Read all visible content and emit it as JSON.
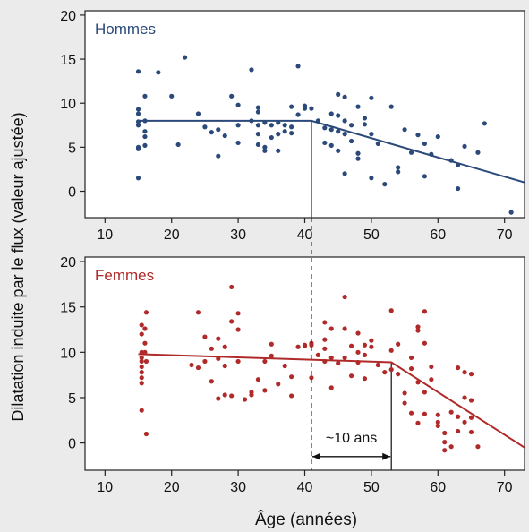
{
  "figure": {
    "ylabel": "Dilatation induite par le flux (valeur ajustée)",
    "xlabel": "Âge (années)",
    "annotation": "~10 ans"
  },
  "colors": {
    "men": "#2b4a7a",
    "women": "#b02a2a",
    "background": "#ebebeb",
    "panel": "#ffffff"
  },
  "chart_data": [
    {
      "type": "scatter",
      "title": "Hommes",
      "xlim": [
        7,
        73
      ],
      "ylim": [
        -3,
        20.5
      ],
      "xticks": [
        10,
        20,
        30,
        40,
        50,
        60,
        70
      ],
      "yticks": [
        0,
        5,
        10,
        15,
        20
      ],
      "breakpoint": 41,
      "fit": [
        [
          15,
          8.0
        ],
        [
          41,
          8.0
        ],
        [
          73,
          1.0
        ]
      ],
      "points": [
        [
          15,
          13.6
        ],
        [
          15,
          9.3
        ],
        [
          15,
          8.8
        ],
        [
          15,
          7.9
        ],
        [
          15,
          7.5
        ],
        [
          15,
          5.0
        ],
        [
          15,
          4.8
        ],
        [
          15,
          1.5
        ],
        [
          16,
          10.8
        ],
        [
          16,
          8.0
        ],
        [
          16,
          6.8
        ],
        [
          16,
          6.2
        ],
        [
          16,
          5.2
        ],
        [
          18,
          13.5
        ],
        [
          20,
          10.8
        ],
        [
          21,
          5.3
        ],
        [
          22,
          15.2
        ],
        [
          24,
          8.8
        ],
        [
          25,
          7.3
        ],
        [
          26,
          6.7
        ],
        [
          27,
          4.0
        ],
        [
          27,
          7.0
        ],
        [
          28,
          6.3
        ],
        [
          29,
          10.8
        ],
        [
          30,
          9.8
        ],
        [
          30,
          7.5
        ],
        [
          30,
          5.5
        ],
        [
          32,
          13.8
        ],
        [
          32,
          8.0
        ],
        [
          33,
          9.5
        ],
        [
          33,
          9.0
        ],
        [
          33,
          7.5
        ],
        [
          33,
          6.5
        ],
        [
          33,
          5.3
        ],
        [
          34,
          7.8
        ],
        [
          34,
          5.0
        ],
        [
          34,
          4.6
        ],
        [
          35,
          7.5
        ],
        [
          35,
          6.1
        ],
        [
          36,
          7.8
        ],
        [
          36,
          6.5
        ],
        [
          36,
          4.6
        ],
        [
          37,
          7.5
        ],
        [
          37,
          6.8
        ],
        [
          38,
          9.6
        ],
        [
          38,
          7.3
        ],
        [
          38,
          6.6
        ],
        [
          39,
          14.2
        ],
        [
          39,
          8.7
        ],
        [
          40,
          9.7
        ],
        [
          40,
          9.4
        ],
        [
          41,
          9.4
        ],
        [
          42,
          8.0
        ],
        [
          43,
          7.2
        ],
        [
          43,
          5.5
        ],
        [
          44,
          8.8
        ],
        [
          44,
          7.0
        ],
        [
          44,
          5.2
        ],
        [
          45,
          11.0
        ],
        [
          45,
          8.6
        ],
        [
          45,
          6.8
        ],
        [
          45,
          4.6
        ],
        [
          46,
          10.7
        ],
        [
          46,
          8.0
        ],
        [
          46,
          6.5
        ],
        [
          46,
          2.0
        ],
        [
          47,
          7.5
        ],
        [
          47,
          5.7
        ],
        [
          48,
          9.6
        ],
        [
          48,
          4.3
        ],
        [
          48,
          3.7
        ],
        [
          49,
          8.3
        ],
        [
          49,
          7.6
        ],
        [
          50,
          10.6
        ],
        [
          50,
          6.5
        ],
        [
          50,
          1.5
        ],
        [
          51,
          5.4
        ],
        [
          52,
          0.8
        ],
        [
          53,
          9.6
        ],
        [
          54,
          2.2
        ],
        [
          54,
          2.7
        ],
        [
          55,
          7.0
        ],
        [
          56,
          4.4
        ],
        [
          57,
          6.4
        ],
        [
          58,
          5.4
        ],
        [
          58,
          1.7
        ],
        [
          59,
          4.2
        ],
        [
          60,
          6.2
        ],
        [
          62,
          3.5
        ],
        [
          63,
          3.0
        ],
        [
          63,
          0.3
        ],
        [
          64,
          5.1
        ],
        [
          66,
          4.4
        ],
        [
          67,
          7.7
        ],
        [
          71,
          -2.4
        ]
      ]
    },
    {
      "type": "scatter",
      "title": "Femmes",
      "xlim": [
        7,
        73
      ],
      "ylim": [
        -3,
        20.5
      ],
      "xticks": [
        10,
        20,
        30,
        40,
        50,
        60,
        70
      ],
      "yticks": [
        0,
        5,
        10,
        15,
        20
      ],
      "breakpoint": 53,
      "fit": [
        [
          15,
          9.8
        ],
        [
          53,
          8.9
        ],
        [
          73,
          -0.5
        ]
      ],
      "points": [
        [
          15.5,
          13.0
        ],
        [
          15.5,
          12.0
        ],
        [
          15.5,
          10.0
        ],
        [
          15.5,
          9.4
        ],
        [
          15.5,
          9.0
        ],
        [
          15.5,
          8.4
        ],
        [
          15.5,
          7.8
        ],
        [
          15.5,
          7.2
        ],
        [
          15.5,
          6.6
        ],
        [
          15.5,
          3.6
        ],
        [
          16,
          12.6
        ],
        [
          16,
          11.0
        ],
        [
          16,
          10.0
        ],
        [
          16.2,
          14.4
        ],
        [
          16.2,
          9.0
        ],
        [
          16.2,
          1.0
        ],
        [
          23,
          8.6
        ],
        [
          24,
          14.4
        ],
        [
          24,
          8.3
        ],
        [
          25,
          11.7
        ],
        [
          25,
          9.0
        ],
        [
          26,
          10.4
        ],
        [
          26,
          6.8
        ],
        [
          27,
          11.5
        ],
        [
          27,
          9.3
        ],
        [
          27,
          4.9
        ],
        [
          28,
          10.6
        ],
        [
          28,
          5.3
        ],
        [
          28,
          8.5
        ],
        [
          29,
          17.2
        ],
        [
          29,
          13.4
        ],
        [
          29,
          5.2
        ],
        [
          30,
          14.3
        ],
        [
          30,
          12.5
        ],
        [
          30,
          9.0
        ],
        [
          31,
          4.8
        ],
        [
          32,
          5.6
        ],
        [
          32,
          5.3
        ],
        [
          33,
          7.0
        ],
        [
          34,
          9.0
        ],
        [
          34,
          5.8
        ],
        [
          35,
          10.9
        ],
        [
          35,
          9.6
        ],
        [
          36,
          6.5
        ],
        [
          37,
          8.5
        ],
        [
          38,
          7.3
        ],
        [
          38,
          5.2
        ],
        [
          39,
          10.6
        ],
        [
          40,
          10.7
        ],
        [
          40,
          10.8
        ],
        [
          41,
          10.8
        ],
        [
          41,
          11.0
        ],
        [
          41,
          7.2
        ],
        [
          42,
          9.7
        ],
        [
          43,
          13.3
        ],
        [
          43,
          11.4
        ],
        [
          43,
          10.4
        ],
        [
          43,
          9.0
        ],
        [
          44,
          12.6
        ],
        [
          44,
          9.4
        ],
        [
          44,
          6.1
        ],
        [
          45,
          8.8
        ],
        [
          46,
          16.1
        ],
        [
          46,
          12.6
        ],
        [
          46,
          9.4
        ],
        [
          47,
          10.7
        ],
        [
          47,
          7.4
        ],
        [
          48,
          12.1
        ],
        [
          48,
          10.0
        ],
        [
          48,
          8.9
        ],
        [
          49,
          10.8
        ],
        [
          49,
          9.7
        ],
        [
          49,
          7.1
        ],
        [
          50,
          11.3
        ],
        [
          50,
          10.6
        ],
        [
          51,
          8.6
        ],
        [
          52,
          7.8
        ],
        [
          53,
          14.6
        ],
        [
          53,
          10.2
        ],
        [
          53,
          8.1
        ],
        [
          54,
          10.9
        ],
        [
          54,
          7.6
        ],
        [
          55,
          5.5
        ],
        [
          55,
          4.4
        ],
        [
          56,
          9.4
        ],
        [
          56,
          8.2
        ],
        [
          56,
          3.3
        ],
        [
          57,
          12.8
        ],
        [
          57,
          12.4
        ],
        [
          57,
          6.7
        ],
        [
          57,
          2.2
        ],
        [
          58,
          14.5
        ],
        [
          58,
          11.0
        ],
        [
          58,
          5.6
        ],
        [
          58,
          3.2
        ],
        [
          59,
          8.4
        ],
        [
          59,
          7.0
        ],
        [
          60,
          3.1
        ],
        [
          60,
          2.3
        ],
        [
          60,
          1.9
        ],
        [
          61,
          1.1
        ],
        [
          61,
          0.1
        ],
        [
          61,
          -0.8
        ],
        [
          62,
          3.4
        ],
        [
          62,
          -0.4
        ],
        [
          63,
          8.3
        ],
        [
          63,
          2.9
        ],
        [
          63,
          1.3
        ],
        [
          64,
          7.8
        ],
        [
          64,
          5.0
        ],
        [
          64,
          2.3
        ],
        [
          65,
          7.6
        ],
        [
          65,
          4.7
        ],
        [
          65,
          2.8
        ],
        [
          65,
          1.2
        ],
        [
          66,
          -0.4
        ]
      ]
    }
  ]
}
